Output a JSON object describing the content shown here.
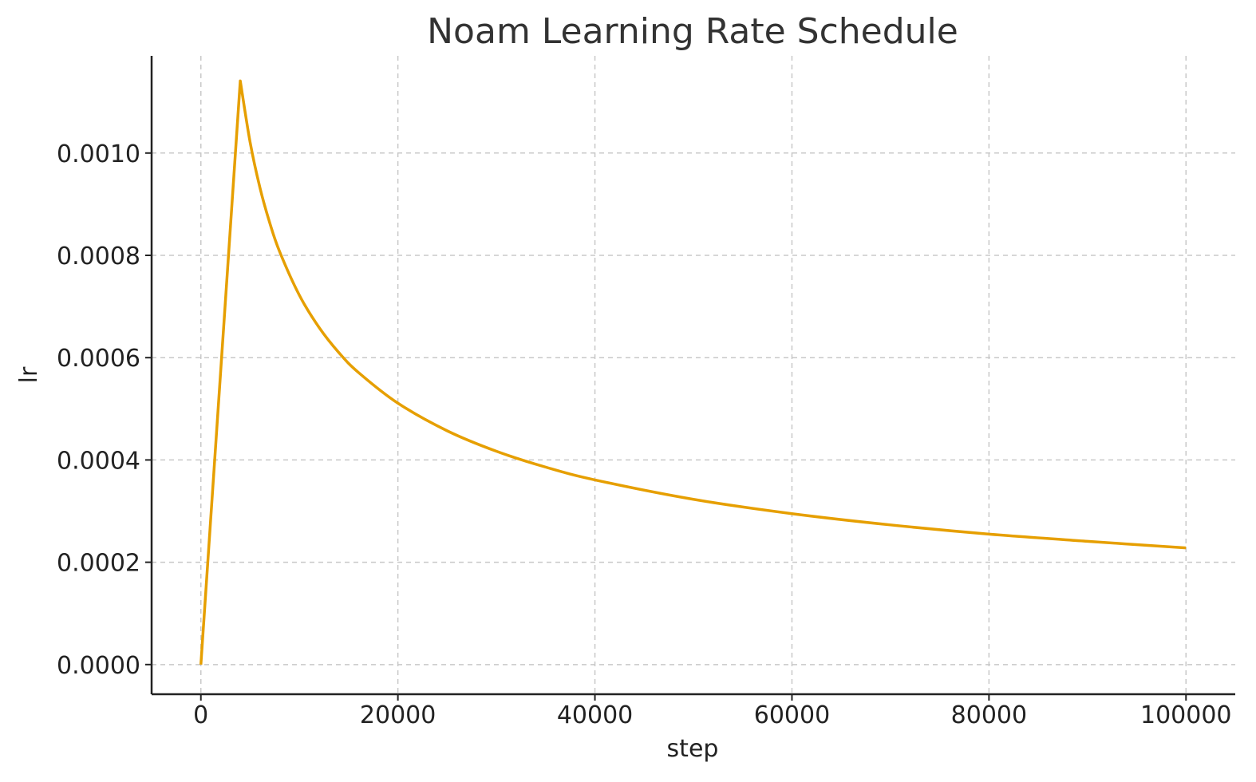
{
  "chart_data": {
    "type": "line",
    "title": "Noam Learning Rate Schedule",
    "xlabel": "step",
    "ylabel": "lr",
    "xlim": [
      -5000,
      105000
    ],
    "ylim": [
      -5.8e-05,
      0.00119
    ],
    "xticks": [
      0,
      20000,
      40000,
      60000,
      80000,
      100000
    ],
    "xtick_labels": [
      "0",
      "20000",
      "40000",
      "60000",
      "80000",
      "100000"
    ],
    "yticks": [
      0.0,
      0.0002,
      0.0004,
      0.0006,
      0.0008,
      0.001
    ],
    "ytick_labels": [
      "0.0000",
      "0.0002",
      "0.0004",
      "0.0006",
      "0.0008",
      "0.0010"
    ],
    "grid": true,
    "series": [
      {
        "color": "#E69F00",
        "x": [
          0,
          4000,
          5000,
          6000,
          7000,
          8000,
          10000,
          12000,
          14000,
          16000,
          20000,
          25000,
          30000,
          35000,
          40000,
          50000,
          60000,
          70000,
          80000,
          90000,
          100000
        ],
        "values": [
          0.0,
          0.001141,
          0.001021,
          0.000932,
          0.000863,
          0.000807,
          0.000722,
          0.000659,
          0.00061,
          0.000571,
          0.000511,
          0.000457,
          0.000417,
          0.000386,
          0.000361,
          0.000323,
          0.000295,
          0.000273,
          0.000255,
          0.000241,
          0.000228
        ]
      }
    ]
  }
}
